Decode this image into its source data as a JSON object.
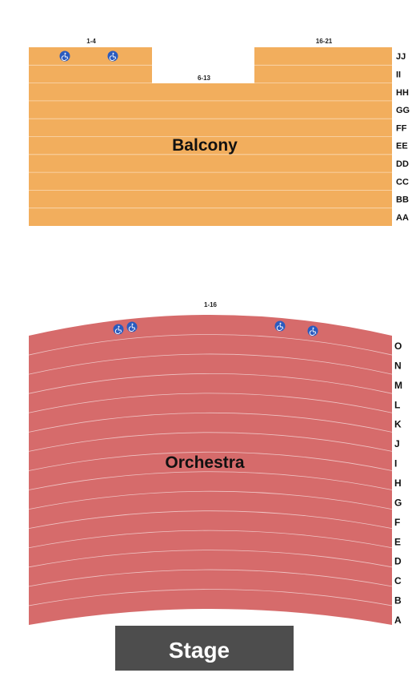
{
  "balcony": {
    "name": "Balcony",
    "color": "#f2ae5d",
    "seat_ranges": [
      "1-4",
      "6-13",
      "16-21"
    ],
    "rows": [
      "JJ",
      "II",
      "HH",
      "GG",
      "FF",
      "EE",
      "DD",
      "CC",
      "BB",
      "AA"
    ]
  },
  "orchestra": {
    "name": "Orchestra",
    "color": "#d66b6b",
    "seat_range": "1-16",
    "rows": [
      "O",
      "N",
      "M",
      "L",
      "K",
      "J",
      "I",
      "H",
      "G",
      "F",
      "E",
      "D",
      "C",
      "B",
      "A"
    ]
  },
  "stage": {
    "label": "Stage",
    "color": "#4d4d4d"
  },
  "icons": {
    "accessible": "wheelchair-icon",
    "accessible_color": "#2a5bbf"
  }
}
